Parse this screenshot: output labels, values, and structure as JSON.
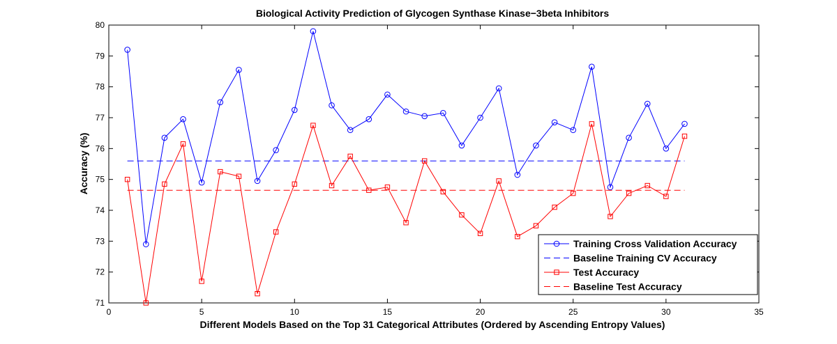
{
  "chart_data": {
    "type": "line",
    "title": "Biological Activity Prediction of Glycogen Synthase Kinase−3beta Inhibitors",
    "xlabel": "Different Models Based on the Top 31 Categorical Attributes (Ordered by Ascending Entropy Values)",
    "ylabel": "Accuracy (%)",
    "xlim": [
      0,
      35
    ],
    "ylim": [
      71,
      80
    ],
    "xticks": [
      "0",
      "5",
      "10",
      "15",
      "20",
      "25",
      "30",
      "35"
    ],
    "yticks": [
      "71",
      "72",
      "73",
      "74",
      "75",
      "76",
      "77",
      "78",
      "79",
      "80"
    ],
    "grid": false,
    "legend_position": "bottom-right",
    "x": [
      1,
      2,
      3,
      4,
      5,
      6,
      7,
      8,
      9,
      10,
      11,
      12,
      13,
      14,
      15,
      16,
      17,
      18,
      19,
      20,
      21,
      22,
      23,
      24,
      25,
      26,
      27,
      28,
      29,
      30,
      31
    ],
    "series": [
      {
        "name": "Training Cross Validation Accuracy",
        "color": "#0000ff",
        "style": "solid",
        "marker": "circle",
        "values": [
          79.2,
          72.9,
          76.35,
          76.95,
          74.9,
          77.5,
          78.55,
          74.95,
          75.95,
          77.25,
          79.8,
          77.4,
          76.6,
          76.95,
          77.75,
          77.2,
          77.05,
          77.15,
          76.1,
          77.0,
          77.95,
          75.15,
          76.1,
          76.85,
          76.6,
          78.65,
          74.75,
          76.35,
          77.45,
          76.0,
          76.8
        ]
      },
      {
        "name": "Baseline Training CV Accuracy",
        "color": "#0000ff",
        "style": "dashed",
        "marker": "none",
        "x": [
          1,
          31
        ],
        "values": [
          75.6,
          75.6
        ]
      },
      {
        "name": "Test Accuracy",
        "color": "#ff0000",
        "style": "solid",
        "marker": "square",
        "values": [
          75.0,
          71.0,
          74.85,
          76.15,
          71.7,
          75.25,
          75.1,
          71.3,
          73.3,
          74.85,
          76.75,
          74.8,
          75.75,
          74.65,
          74.75,
          73.6,
          75.6,
          74.6,
          73.85,
          73.25,
          74.95,
          73.15,
          73.5,
          74.1,
          74.55,
          76.8,
          73.8,
          74.55,
          74.8,
          74.45,
          76.4
        ]
      },
      {
        "name": "Baseline Test  Accuracy",
        "color": "#ff0000",
        "style": "dashed",
        "marker": "none",
        "x": [
          1,
          31
        ],
        "values": [
          74.65,
          74.65
        ]
      }
    ]
  }
}
